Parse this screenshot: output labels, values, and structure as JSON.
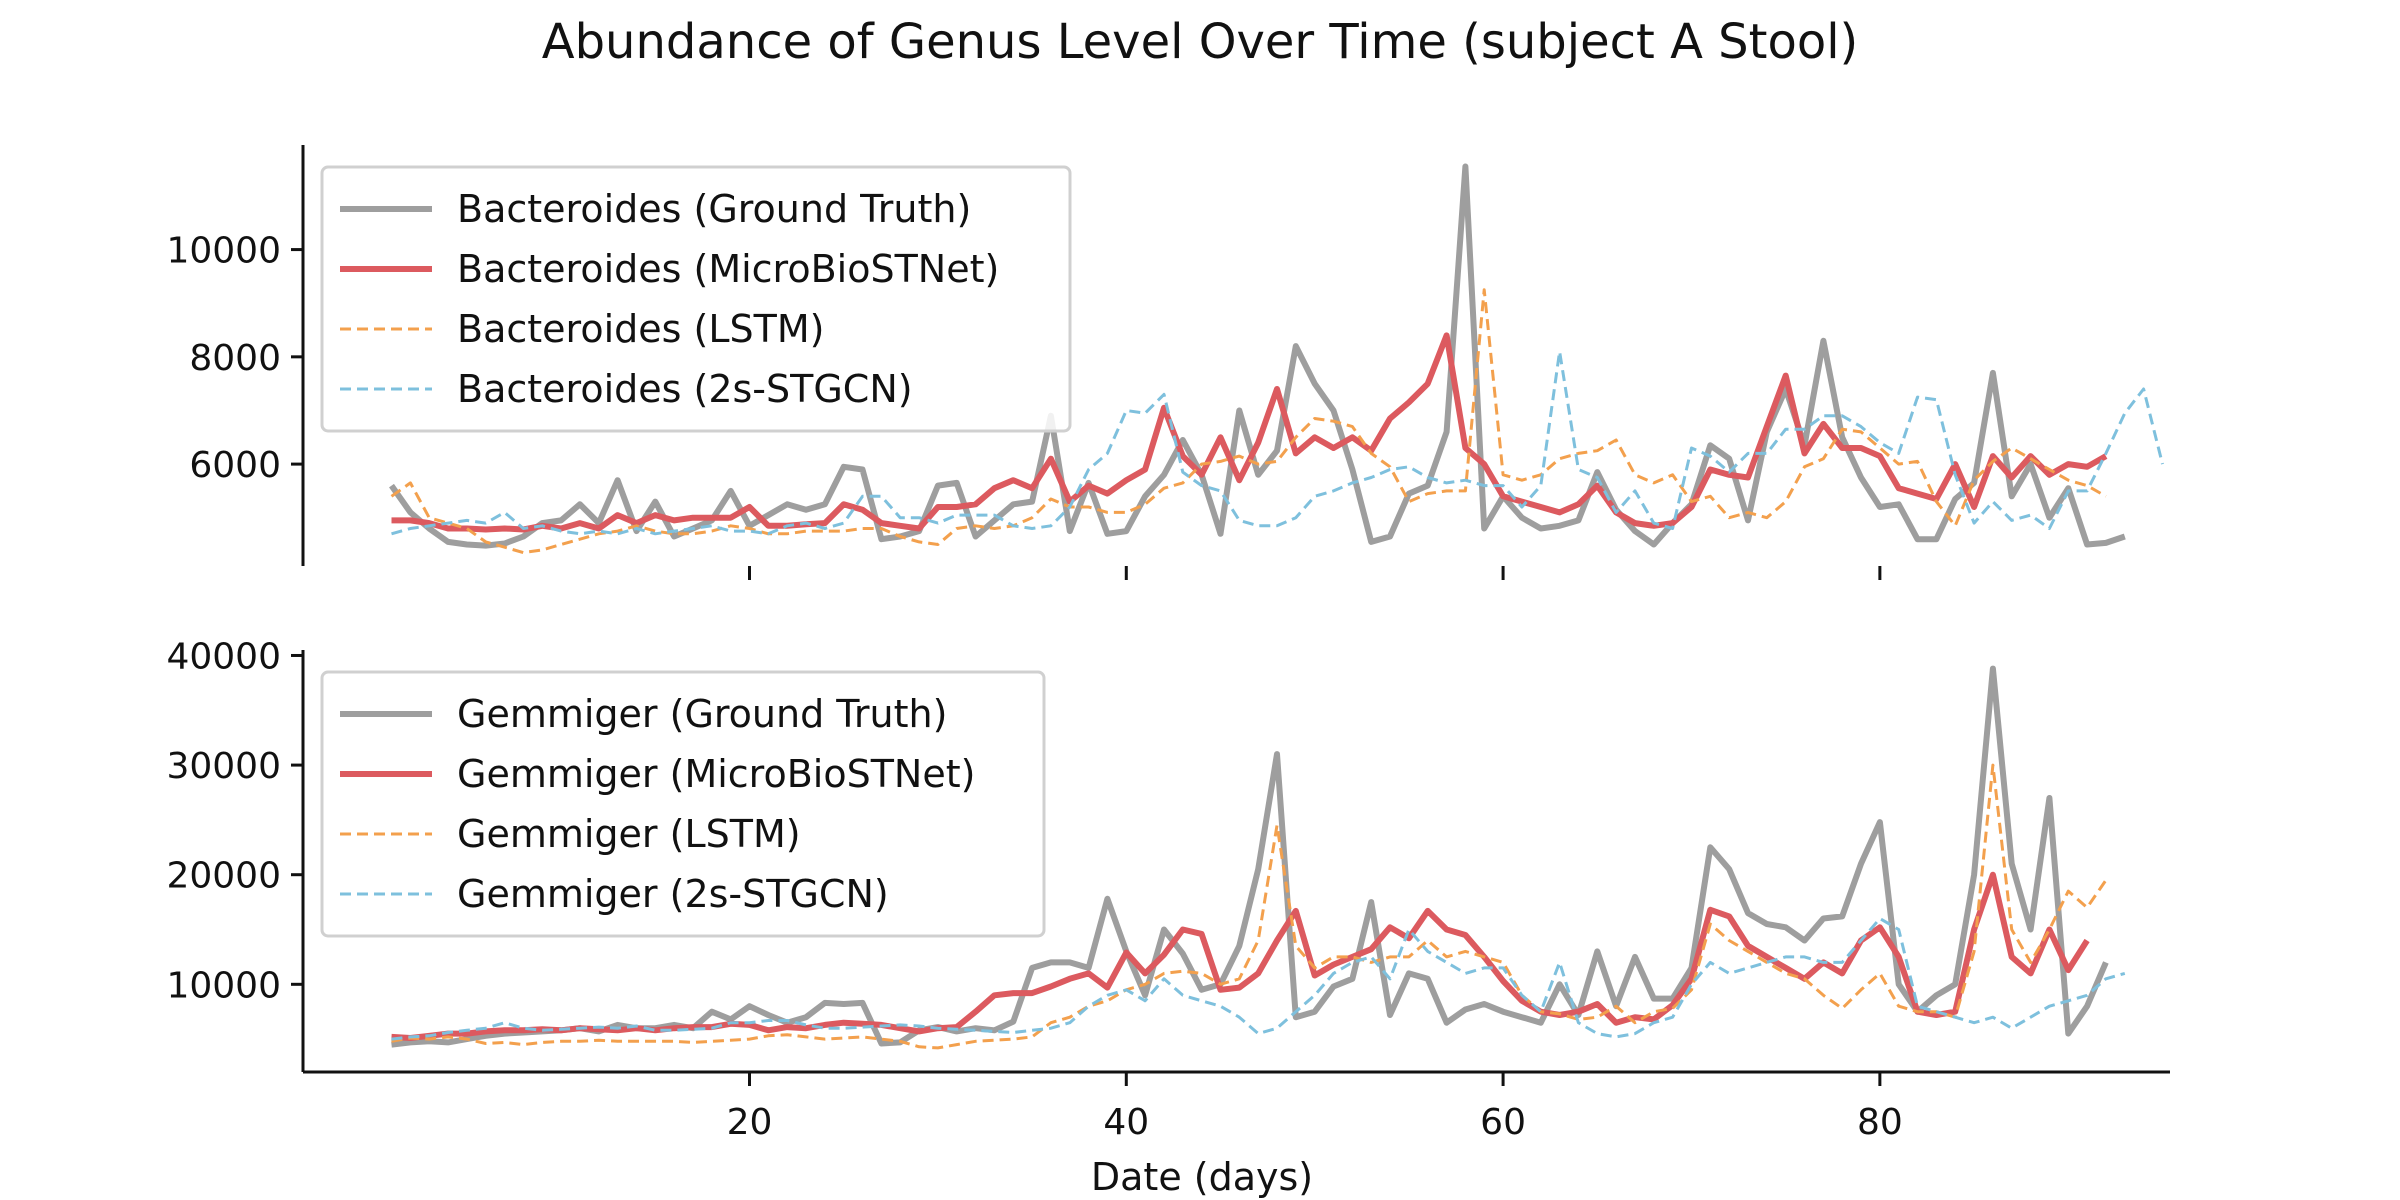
{
  "chart_data": {
    "type": "line",
    "title": "Abundance of Genus Level Over Time (subject A Stool)",
    "xlabel": "Date (days)",
    "x_ticks": [
      20,
      40,
      60,
      80
    ],
    "xlim": [
      -3.7,
      95.4
    ],
    "panels": [
      {
        "ylabel": "",
        "ylim": [
          4100,
          11950
        ],
        "y_ticks": [
          6000,
          8000,
          10000
        ],
        "legend_position": "upper-left",
        "series": [
          {
            "name": "Bacteroides (Ground Truth)",
            "color": "#9e9e9e",
            "style": "solid",
            "width": 6,
            "values": [
              5600,
              5100,
              4800,
              4550,
              4500,
              4480,
              4520,
              4650,
              4900,
              4950,
              5250,
              4900,
              5700,
              4750,
              5300,
              4650,
              4800,
              4950,
              5500,
              4850,
              5050,
              5250,
              5150,
              5250,
              5950,
              5900,
              4600,
              4650,
              4750,
              5600,
              5650,
              4650,
              4950,
              5250,
              5300,
              6900,
              4750,
              5650,
              4700,
              4750,
              5400,
              5800,
              6450,
              5800,
              4700,
              7000,
              5800,
              6250,
              8200,
              7500,
              7000,
              5900,
              4550,
              4650,
              5450,
              5600,
              6600,
              11550,
              4800,
              5400,
              5000,
              4800,
              4850,
              4950,
              5850,
              5150,
              4750,
              4500,
              4900,
              5250,
              6350,
              6100,
              4950,
              6600,
              7400,
              6350,
              8300,
              6500,
              5750,
              5200,
              5250,
              4600,
              4600,
              5350,
              5650,
              7700,
              5400,
              6000,
              5000,
              5550,
              4500,
              4530,
              4650
            ]
          },
          {
            "name": "Bacteroides (MicroBioSTNet)",
            "color": "#dc5a5f",
            "style": "solid",
            "width": 6,
            "values": [
              4950,
              4950,
              4900,
              4800,
              4800,
              4780,
              4800,
              4780,
              4850,
              4800,
              4900,
              4800,
              5050,
              4900,
              5050,
              4950,
              5000,
              5000,
              5000,
              5200,
              4850,
              4850,
              4880,
              4900,
              5250,
              5150,
              4900,
              4850,
              4800,
              5200,
              5200,
              5250,
              5550,
              5700,
              5550,
              6100,
              5300,
              5600,
              5450,
              5700,
              5900,
              7050,
              6150,
              5800,
              6500,
              5700,
              6400,
              7400,
              6200,
              6500,
              6300,
              6500,
              6250,
              6850,
              7150,
              7500,
              8400,
              6300,
              6000,
              5400,
              5300,
              5200,
              5100,
              5250,
              5600,
              5100,
              4900,
              4850,
              4900,
              5200,
              5900,
              5800,
              5750,
              6700,
              7650,
              6200,
              6750,
              6300,
              6300,
              6150,
              5550,
              5450,
              5350,
              6000,
              5200,
              6150,
              5750,
              6150,
              5800,
              6000,
              5950,
              6150
            ]
          },
          {
            "name": "Bacteroides (LSTM)",
            "color": "#f3a04d",
            "style": "dashed",
            "width": 3,
            "values": [
              5400,
              5650,
              5000,
              4900,
              4800,
              4550,
              4450,
              4350,
              4400,
              4500,
              4600,
              4700,
              4750,
              4850,
              4750,
              4700,
              4700,
              4750,
              4850,
              4800,
              4700,
              4700,
              4750,
              4750,
              4750,
              4800,
              4800,
              4650,
              4550,
              4500,
              4800,
              4850,
              4800,
              4850,
              5000,
              5350,
              5200,
              5200,
              5100,
              5100,
              5250,
              5550,
              5650,
              6000,
              6050,
              6150,
              6000,
              6050,
              6500,
              6850,
              6800,
              6700,
              6200,
              5950,
              5300,
              5450,
              5500,
              5500,
              9250,
              5800,
              5700,
              5800,
              6100,
              6200,
              6250,
              6450,
              5800,
              5650,
              5800,
              5300,
              5400,
              5000,
              5100,
              5000,
              5300,
              5950,
              6100,
              6650,
              6600,
              6300,
              6000,
              6050,
              5300,
              4850,
              5700,
              6050,
              6300,
              6100,
              5900,
              5700,
              5600,
              5400
            ]
          },
          {
            "name": "Bacteroides (2s-STGCN)",
            "color": "#7ec0dd",
            "style": "dashed",
            "width": 3,
            "values": [
              4700,
              4800,
              4850,
              4900,
              4950,
              4900,
              5100,
              4800,
              4850,
              4750,
              4700,
              4750,
              4700,
              4800,
              4700,
              4750,
              4800,
              4850,
              4750,
              4750,
              4700,
              4850,
              4900,
              4800,
              4900,
              5400,
              5400,
              5000,
              5000,
              4900,
              5050,
              5050,
              5050,
              4850,
              4800,
              4850,
              5200,
              5900,
              6200,
              7000,
              6950,
              7300,
              5850,
              5600,
              5500,
              4950,
              4850,
              4850,
              5000,
              5400,
              5500,
              5650,
              5750,
              5900,
              5950,
              5750,
              5650,
              5700,
              5600,
              5600,
              5200,
              5600,
              8100,
              5900,
              5750,
              5100,
              5500,
              4900,
              4800,
              6300,
              6150,
              5850,
              6200,
              6200,
              6650,
              6650,
              6900,
              6900,
              6700,
              6400,
              6200,
              7250,
              7200,
              5800,
              4900,
              5300,
              4950,
              5050,
              4800,
              5500,
              5500,
              6200,
              6950,
              7400,
              6000
            ]
          }
        ]
      },
      {
        "ylabel": "",
        "ylim": [
          2000,
          40500
        ],
        "y_ticks": [
          10000,
          20000,
          30000,
          40000
        ],
        "legend_position": "upper-left",
        "series": [
          {
            "name": "Gemmiger (Ground Truth)",
            "color": "#9e9e9e",
            "style": "solid",
            "width": 6,
            "values": [
              4500,
              4700,
              4800,
              4700,
              5000,
              5300,
              5500,
              5600,
              5700,
              5800,
              6000,
              5700,
              6300,
              6000,
              6000,
              6300,
              6000,
              7500,
              6800,
              8000,
              7200,
              6500,
              7000,
              8300,
              8200,
              8300,
              4600,
              4700,
              5800,
              6100,
              5700,
              6000,
              5800,
              6600,
              11500,
              12000,
              12000,
              11500,
              17800,
              13000,
              9000,
              15000,
              12800,
              9500,
              10000,
              13500,
              20500,
              31000,
              7000,
              7500,
              9800,
              10500,
              17500,
              7200,
              11000,
              10500,
              6500,
              7700,
              8200,
              7500,
              7000,
              6500,
              10000,
              7200,
              13000,
              8000,
              12500,
              8700,
              8700,
              11500,
              22500,
              20500,
              16500,
              15500,
              15200,
              14000,
              16000,
              16200,
              21000,
              24800,
              10000,
              7500,
              9000,
              10000,
              20000,
              38800,
              21000,
              15000,
              27000,
              5500,
              8000,
              12000
            ]
          },
          {
            "name": "Gemmiger (MicroBioSTNet)",
            "color": "#dc5a5f",
            "style": "solid",
            "width": 6,
            "values": [
              5200,
              5100,
              5300,
              5500,
              5500,
              5700,
              5800,
              5800,
              5900,
              5800,
              6000,
              5900,
              5800,
              6000,
              5800,
              6000,
              6100,
              6100,
              6400,
              6300,
              5800,
              6100,
              6000,
              6300,
              6500,
              6400,
              6300,
              6000,
              5700,
              6000,
              6100,
              7500,
              9000,
              9200,
              9200,
              9800,
              10500,
              11000,
              9700,
              12900,
              11000,
              12700,
              15000,
              14600,
              9500,
              9700,
              11000,
              14000,
              16700,
              10800,
              11800,
              12500,
              13200,
              15200,
              14200,
              16700,
              15000,
              14500,
              12500,
              10300,
              8500,
              7500,
              7200,
              7500,
              8200,
              6500,
              7000,
              6800,
              8100,
              10500,
              16800,
              16200,
              13500,
              12500,
              11500,
              10500,
              12000,
              11000,
              14000,
              15200,
              12500,
              7500,
              7200,
              7500,
              15000,
              20000,
              12500,
              11000,
              15000,
              11300,
              14000
            ]
          },
          {
            "name": "Gemmiger (LSTM)",
            "color": "#f3a04d",
            "style": "dashed",
            "width": 3,
            "values": [
              4800,
              5100,
              5000,
              5200,
              5000,
              4600,
              4700,
              4500,
              4700,
              4800,
              4800,
              4900,
              4800,
              4800,
              4800,
              4800,
              4700,
              4800,
              4900,
              5000,
              5300,
              5400,
              5200,
              5000,
              5100,
              5200,
              5000,
              4800,
              4300,
              4200,
              4500,
              4800,
              4900,
              5000,
              5200,
              6500,
              7000,
              8000,
              8500,
              9500,
              10000,
              11000,
              11200,
              11000,
              10000,
              10500,
              14000,
              24500,
              13500,
              11500,
              12500,
              12500,
              12000,
              12500,
              12500,
              14000,
              12500,
              13000,
              12500,
              12000,
              9000,
              7500,
              7300,
              6800,
              7000,
              8000,
              6500,
              7500,
              7800,
              9500,
              15500,
              14000,
              13000,
              12000,
              11000,
              10500,
              9000,
              7800,
              9500,
              11000,
              8000,
              7500,
              7500,
              7000,
              13000,
              30000,
              15000,
              12000,
              15000,
              18500,
              17000,
              19500
            ]
          },
          {
            "name": "Gemmiger (2s-STGCN)",
            "color": "#7ec0dd",
            "style": "dashed",
            "width": 3,
            "values": [
              5000,
              5200,
              5300,
              5600,
              5800,
              6000,
              6500,
              6000,
              5800,
              5900,
              6000,
              6100,
              6000,
              6200,
              5800,
              5800,
              5900,
              6000,
              6500,
              6500,
              6700,
              6700,
              6300,
              6000,
              6000,
              6100,
              6200,
              6300,
              6200,
              6000,
              5900,
              5800,
              5700,
              5600,
              5800,
              6000,
              6500,
              8000,
              9000,
              9500,
              8500,
              10500,
              9000,
              8500,
              8000,
              7000,
              5500,
              6000,
              7500,
              9000,
              11000,
              12000,
              12500,
              10500,
              15000,
              13000,
              12000,
              11000,
              11500,
              11500,
              9000,
              7500,
              12000,
              6500,
              5500,
              5200,
              5500,
              6500,
              7000,
              10000,
              12000,
              11000,
              11500,
              12000,
              12500,
              12500,
              12000,
              12000,
              14000,
              16000,
              15000,
              8000,
              7500,
              7000,
              6500,
              7000,
              6000,
              7000,
              8000,
              8500,
              9000,
              10500,
              11000
            ]
          }
        ]
      }
    ]
  }
}
